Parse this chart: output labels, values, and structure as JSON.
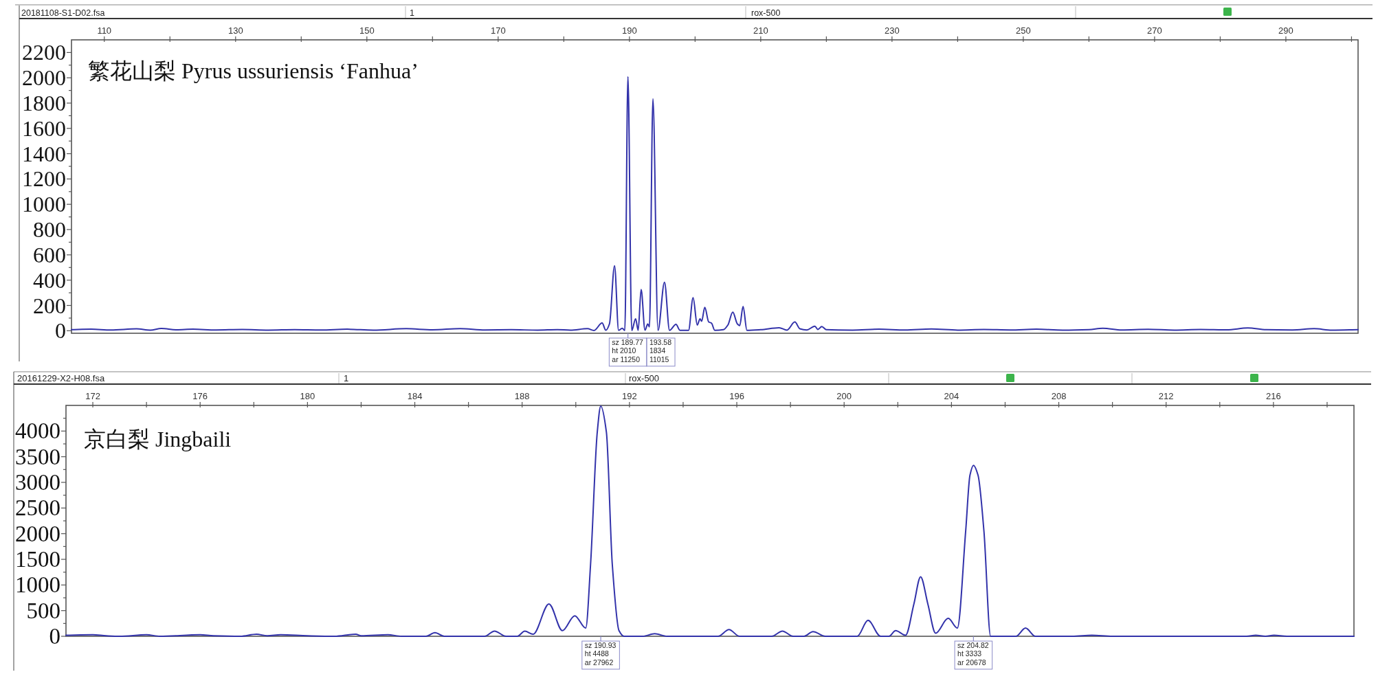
{
  "chart_data": [
    {
      "type": "line",
      "title": "繁花山梨 Pyrus ussuriensis ‘Fanhua’",
      "x": [
        105,
        108,
        111,
        114.9,
        117,
        118.7,
        121,
        123.5,
        127,
        131,
        135,
        139,
        143,
        147,
        151,
        156,
        160,
        164.2,
        168,
        172,
        176,
        179,
        181,
        183.6,
        184.6,
        185.84,
        186.4,
        186.96,
        187.73,
        188.35,
        188.9,
        189.3,
        189.77,
        190.35,
        190.94,
        191.33,
        191.78,
        192.37,
        192.79,
        193.05,
        193.58,
        194.35,
        195.34,
        196.11,
        197.09,
        197.7,
        199.0,
        199.7,
        200.33,
        200.75,
        201.0,
        201.48,
        202.07,
        202.5,
        203.0,
        204.3,
        205.0,
        205.74,
        206.44,
        206.8,
        207.31,
        207.9,
        210,
        212.8,
        214,
        215.2,
        215.97,
        217,
        218.24,
        218.7,
        219.3,
        220,
        224,
        228,
        232,
        236,
        240,
        244,
        248,
        252,
        256,
        260,
        262.1,
        265,
        269,
        273,
        277,
        281,
        284.2,
        287,
        291,
        294.3,
        297,
        301
      ],
      "series": [
        {
          "color": "#3232aa",
          "values": [
            8,
            12,
            6,
            15,
            5,
            18,
            7,
            12,
            6,
            10,
            5,
            9,
            6,
            12,
            5,
            16,
            7,
            17,
            6,
            8,
            5,
            9,
            4,
            16,
            2,
            61,
            4,
            55,
            514,
            3,
            20,
            2,
            2010,
            2,
            94,
            3,
            327,
            4,
            54,
            30,
            1834,
            3,
            384,
            3,
            50,
            3,
            3,
            261,
            45,
            94,
            75,
            185,
            70,
            60,
            3,
            8,
            45,
            147,
            54,
            40,
            192,
            3,
            8,
            24,
            5,
            69,
            15,
            6,
            36,
            10,
            33,
            8,
            5,
            12,
            6,
            14,
            5,
            10,
            6,
            12,
            5,
            9,
            20,
            6,
            11,
            5,
            10,
            7,
            22,
            8,
            6,
            16,
            5,
            9
          ]
        }
      ],
      "xlim": [
        105,
        301
      ],
      "ylim": [
        -20,
        2300
      ],
      "xticks": [
        110,
        {
          "value": 120,
          "label": null
        },
        130,
        {
          "value": 140,
          "label": null
        },
        150,
        {
          "value": 160,
          "label": null
        },
        170,
        {
          "value": 180,
          "label": null
        },
        190,
        {
          "value": 200,
          "label": null
        },
        210,
        {
          "value": 220,
          "label": null
        },
        230,
        {
          "value": 240,
          "label": null
        },
        250,
        {
          "value": 260,
          "label": null
        },
        270,
        {
          "value": 280,
          "label": null
        },
        290,
        {
          "value": 300,
          "label": null
        }
      ],
      "yticks": [
        0,
        {
          "value": 100,
          "label": null
        },
        200,
        {
          "value": 300,
          "label": null
        },
        400,
        {
          "value": 500,
          "label": null
        },
        600,
        {
          "value": 700,
          "label": null
        },
        800,
        {
          "value": 900,
          "label": null
        },
        1000,
        {
          "value": 1100,
          "label": null
        },
        1200,
        {
          "value": 1300,
          "label": null
        },
        1400,
        {
          "value": 1500,
          "label": null
        },
        1600,
        {
          "value": 1700,
          "label": null
        },
        1800,
        {
          "value": 1900,
          "label": null
        },
        2000,
        {
          "value": 2100,
          "label": null
        },
        2200
      ],
      "annotations": [
        "20181108-S1-D02.fsa",
        "1",
        "rox-500",
        {
          "text": "sz 189.77\nht 2010\nar 11250",
          "x": 189.77
        },
        "193.58\n1834\n11015"
      ]
    },
    {
      "type": "line",
      "title": "京白梨 Jingbaili",
      "x": [
        171,
        172,
        172.5,
        173,
        174,
        174.5,
        176,
        176.5,
        177.5,
        178.1,
        178.5,
        179,
        180,
        181,
        181.8,
        182,
        183,
        183.5,
        184.42,
        184.75,
        185.1,
        186.6,
        186.97,
        187.4,
        187.82,
        188.1,
        188.41,
        189.0,
        189.5,
        189.96,
        190.37,
        190.55,
        190.8,
        190.93,
        191.14,
        191.36,
        191.61,
        191.8,
        192.5,
        192.94,
        193.4,
        195.3,
        195.71,
        196.1,
        197.3,
        197.7,
        198.1,
        198.5,
        198.84,
        199.3,
        200.49,
        200.89,
        201.36,
        201.67,
        201.92,
        202.29,
        202.6,
        202.85,
        203.12,
        203.41,
        203.88,
        204.22,
        204.53,
        204.69,
        204.82,
        204.99,
        205.21,
        205.46,
        206.4,
        206.76,
        207.13,
        208.5,
        209.23,
        210,
        215,
        215.34,
        215.7,
        216.02,
        216.5,
        219
      ],
      "series": [
        {
          "color": "#3232aa",
          "values": [
            20,
            30,
            10,
            0,
            30,
            0,
            30,
            10,
            0,
            40,
            10,
            30,
            10,
            0,
            40,
            10,
            30,
            0,
            0,
            70,
            0,
            0,
            100,
            0,
            0,
            100,
            40,
            630,
            110,
            400,
            160,
            1400,
            3980,
            4488,
            3980,
            1400,
            110,
            0,
            0,
            50,
            0,
            0,
            130,
            0,
            0,
            100,
            0,
            0,
            90,
            0,
            0,
            310,
            0,
            0,
            110,
            20,
            630,
            1160,
            630,
            60,
            350,
            160,
            2050,
            3140,
            3333,
            3140,
            2050,
            0,
            0,
            160,
            0,
            0,
            20,
            0,
            0,
            20,
            0,
            20,
            0,
            0
          ]
        }
      ],
      "xlim": [
        171,
        219
      ],
      "ylim": [
        0,
        4500
      ],
      "xticks": [
        172,
        {
          "value": 174,
          "label": null
        },
        176,
        {
          "value": 178,
          "label": null
        },
        180,
        {
          "value": 182,
          "label": null
        },
        184,
        {
          "value": 186,
          "label": null
        },
        188,
        {
          "value": 190,
          "label": null
        },
        192,
        {
          "value": 194,
          "label": null
        },
        196,
        {
          "value": 198,
          "label": null
        },
        200,
        {
          "value": 202,
          "label": null
        },
        204,
        {
          "value": 206,
          "label": null
        },
        208,
        {
          "value": 210,
          "label": null
        },
        212,
        {
          "value": 214,
          "label": null
        },
        216,
        {
          "value": 218,
          "label": null
        }
      ],
      "yticks": [
        0,
        {
          "value": 250,
          "label": null
        },
        500,
        {
          "value": 750,
          "label": null
        },
        1000,
        {
          "value": 1250,
          "label": null
        },
        1500,
        {
          "value": 1750,
          "label": null
        },
        2000,
        {
          "value": 2250,
          "label": null
        },
        2500,
        {
          "value": 2750,
          "label": null
        },
        3000,
        {
          "value": 3250,
          "label": null
        },
        3500,
        {
          "value": 3750,
          "label": null
        },
        4000,
        {
          "value": 4250,
          "label": null
        }
      ],
      "annotations": [
        "20161229-X2-H08.fsa",
        "1",
        "rox-500",
        {
          "text": "sz 190.93\nht 4488\nar 27962",
          "x": 190.93
        },
        {
          "text": "sz 204.82\nht 3333\nar 20678",
          "x": 204.82
        }
      ]
    }
  ]
}
